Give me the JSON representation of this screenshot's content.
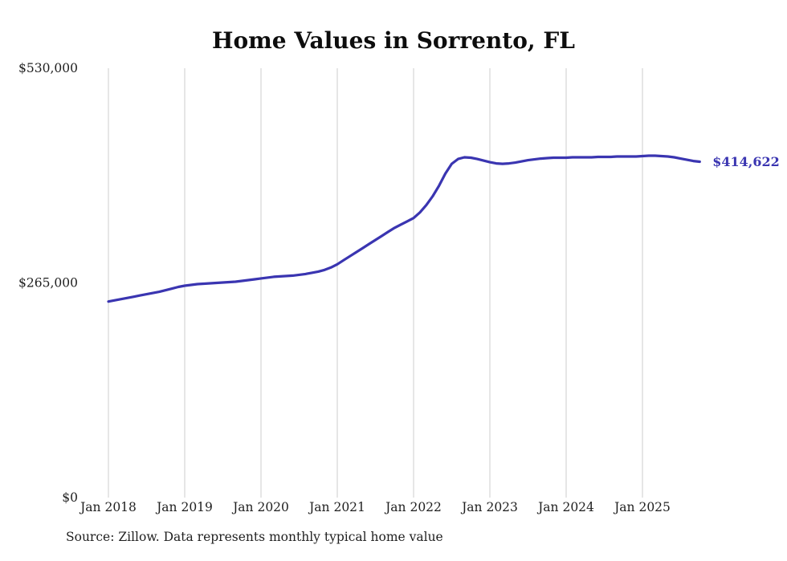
{
  "page": {
    "title": "Home Values in Sorrento, FL",
    "source_note": "Source: Zillow. Data represents monthly typical home value"
  },
  "chart_data": {
    "type": "line",
    "title": "Home Values in Sorrento, FL",
    "series_name": "Typical home value",
    "x_unit": "month",
    "start": "2018-01",
    "end": "2025-10",
    "x_tick_labels": [
      "Jan 2018",
      "Jan 2019",
      "Jan 2020",
      "Jan 2021",
      "Jan 2022",
      "Jan 2023",
      "Jan 2024",
      "Jan 2025"
    ],
    "y_tick_labels": [
      "$0",
      "$265,000",
      "$530,000"
    ],
    "y_ticks": [
      0,
      265000,
      530000
    ],
    "ylim": [
      0,
      530000
    ],
    "grid": "vertical-only",
    "legend": "none",
    "line_color": "#3a35b1",
    "grid_color": "#cccccc",
    "tick_color": "#1f1f1f",
    "end_label": "$414,622",
    "values": [
      242000,
      243500,
      245000,
      246500,
      248000,
      249500,
      251000,
      252500,
      254000,
      256000,
      258000,
      260000,
      261500,
      262500,
      263500,
      264000,
      264500,
      265000,
      265500,
      266000,
      266500,
      267500,
      268500,
      269500,
      270500,
      271500,
      272500,
      273000,
      273500,
      274000,
      275000,
      276000,
      277500,
      279000,
      281000,
      284000,
      288000,
      293000,
      298000,
      303000,
      308000,
      313000,
      318000,
      323000,
      328000,
      333000,
      337000,
      341000,
      345000,
      352000,
      361000,
      372000,
      385000,
      400000,
      412000,
      418000,
      420000,
      419500,
      418000,
      416000,
      414000,
      412500,
      412000,
      412500,
      413500,
      415000,
      416500,
      417500,
      418500,
      419000,
      419500,
      419500,
      419500,
      420000,
      420000,
      420000,
      420000,
      420500,
      420500,
      420500,
      421000,
      421000,
      421000,
      421000,
      421500,
      422000,
      422000,
      421500,
      421000,
      420000,
      418500,
      417000,
      415500,
      414622
    ]
  }
}
